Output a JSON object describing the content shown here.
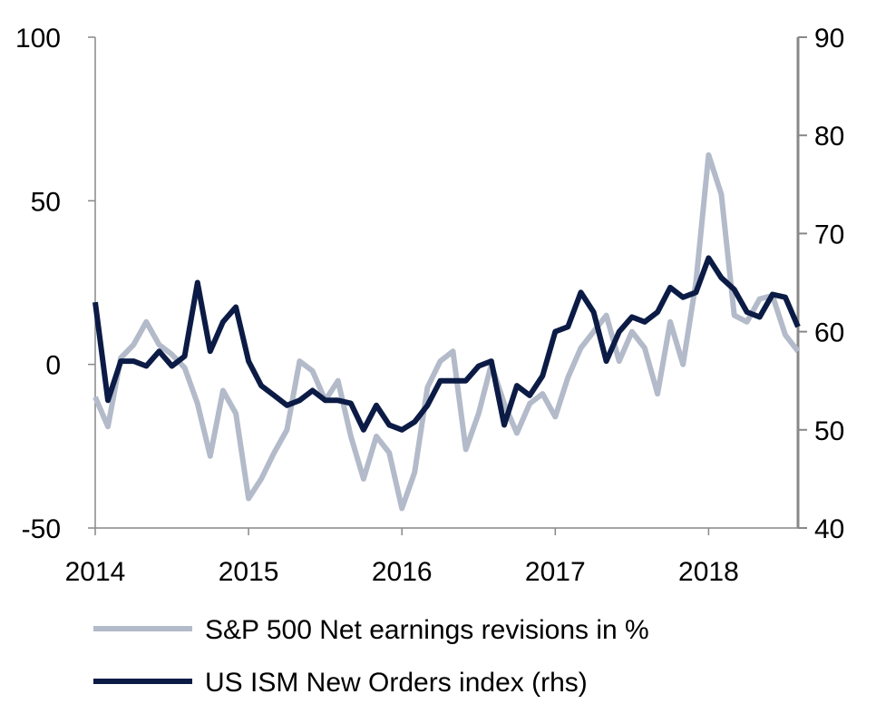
{
  "chart_data": {
    "type": "line",
    "title": "",
    "xlabel": "",
    "ylabel": "",
    "x_axis": {
      "range": [
        2014.0,
        2018.583
      ],
      "ticks": [
        2014,
        2015,
        2016,
        2017,
        2018
      ],
      "tick_labels": [
        "2014",
        "2015",
        "2016",
        "2017",
        "2018"
      ]
    },
    "y_left": {
      "range": [
        -50,
        100
      ],
      "ticks": [
        -50,
        0,
        50,
        100
      ],
      "tick_labels": [
        "-50",
        "0",
        "50",
        "100"
      ]
    },
    "y_right": {
      "range": [
        40,
        90
      ],
      "ticks": [
        40,
        50,
        60,
        70,
        80,
        90
      ],
      "tick_labels": [
        "40",
        "50",
        "60",
        "70",
        "80",
        "90"
      ]
    },
    "grid": false,
    "legend_position": "bottom",
    "series": [
      {
        "name": "S&P 500 Net earnings revisions in %",
        "axis": "left",
        "color": "#b3bac9",
        "x": [
          2014.0,
          2014.083,
          2014.167,
          2014.25,
          2014.333,
          2014.417,
          2014.5,
          2014.583,
          2014.667,
          2014.75,
          2014.833,
          2014.917,
          2015.0,
          2015.083,
          2015.167,
          2015.25,
          2015.333,
          2015.417,
          2015.5,
          2015.583,
          2015.667,
          2015.75,
          2015.833,
          2015.917,
          2016.0,
          2016.083,
          2016.167,
          2016.25,
          2016.333,
          2016.417,
          2016.5,
          2016.583,
          2016.667,
          2016.75,
          2016.833,
          2016.917,
          2017.0,
          2017.083,
          2017.167,
          2017.25,
          2017.333,
          2017.417,
          2017.5,
          2017.583,
          2017.667,
          2017.75,
          2017.833,
          2017.917,
          2018.0,
          2018.083,
          2018.167,
          2018.25,
          2018.333,
          2018.417,
          2018.5,
          2018.583
        ],
        "values": [
          -10,
          -19,
          2,
          6,
          13,
          6,
          3,
          -1,
          -12,
          -28,
          -8,
          -15,
          -41,
          -35,
          -27,
          -20,
          1,
          -2,
          -11,
          -5,
          -22,
          -35,
          -22,
          -27,
          -44,
          -33,
          -7,
          1,
          4,
          -26,
          -15,
          0,
          -12,
          -21,
          -12,
          -9,
          -16,
          -4,
          5,
          10,
          15,
          1,
          10,
          5,
          -9,
          13,
          0,
          25,
          64,
          52,
          15,
          13,
          20,
          21,
          9,
          4
        ]
      },
      {
        "name": "US ISM New Orders index (rhs)",
        "axis": "right",
        "color": "#0b1b45",
        "x": [
          2014.0,
          2014.083,
          2014.167,
          2014.25,
          2014.333,
          2014.417,
          2014.5,
          2014.583,
          2014.667,
          2014.75,
          2014.833,
          2014.917,
          2015.0,
          2015.083,
          2015.167,
          2015.25,
          2015.333,
          2015.417,
          2015.5,
          2015.583,
          2015.667,
          2015.75,
          2015.833,
          2015.917,
          2016.0,
          2016.083,
          2016.167,
          2016.25,
          2016.333,
          2016.417,
          2016.5,
          2016.583,
          2016.667,
          2016.75,
          2016.833,
          2016.917,
          2017.0,
          2017.083,
          2017.167,
          2017.25,
          2017.333,
          2017.417,
          2017.5,
          2017.583,
          2017.667,
          2017.75,
          2017.833,
          2017.917,
          2018.0,
          2018.083,
          2018.167,
          2018.25,
          2018.333,
          2018.417,
          2018.5,
          2018.583
        ],
        "values": [
          63,
          53,
          57,
          57,
          56.5,
          58,
          56.5,
          57.5,
          65,
          58,
          61,
          62.5,
          57,
          54.5,
          53.5,
          52.5,
          53,
          54,
          53,
          53,
          52.7,
          50,
          52.5,
          50.5,
          50,
          50.8,
          52.5,
          55,
          55,
          55,
          56.5,
          57,
          50.5,
          54.5,
          53.5,
          55.5,
          60,
          60.5,
          64,
          62,
          57,
          60,
          61.5,
          61,
          62,
          64.5,
          63.5,
          64,
          67.5,
          65.5,
          64.3,
          62,
          61.5,
          63.8,
          63.5,
          60.5
        ]
      }
    ]
  }
}
